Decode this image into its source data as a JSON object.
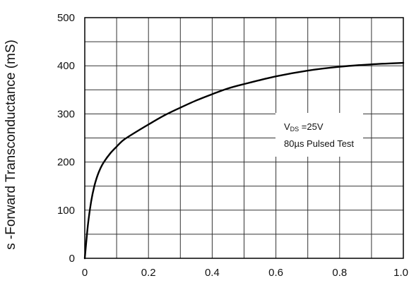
{
  "chart_data": {
    "type": "line",
    "title": "",
    "xlabel": "",
    "ylabel": "Forward Transconductance (mS)",
    "ylabel_prefix": "s -",
    "xlim": [
      0,
      1.0
    ],
    "ylim": [
      0,
      500
    ],
    "xticks": [
      "0",
      "0.2",
      "0.4",
      "0.6",
      "0.8",
      "1.0"
    ],
    "yticks": [
      "0",
      "100",
      "200",
      "300",
      "400",
      "500"
    ],
    "grid": true,
    "series": [
      {
        "x": [
          0,
          0.01,
          0.02,
          0.03,
          0.04,
          0.05,
          0.06,
          0.08,
          0.1,
          0.12,
          0.15,
          0.2,
          0.25,
          0.3,
          0.35,
          0.4,
          0.45,
          0.5,
          0.6,
          0.7,
          0.8,
          0.9,
          1.0
        ],
        "y": [
          0,
          70,
          118,
          150,
          172,
          188,
          200,
          218,
          232,
          245,
          258,
          278,
          297,
          313,
          328,
          341,
          353,
          362,
          378,
          390,
          398,
          403,
          406
        ]
      }
    ],
    "annotation": {
      "vds_main": "V",
      "vds_sub": "DS",
      "vds_value": " =25V",
      "pulse": "80µs Pulsed Test"
    },
    "colors": {
      "line": "#000000",
      "grid": "#333333",
      "frame": "#000000"
    }
  }
}
